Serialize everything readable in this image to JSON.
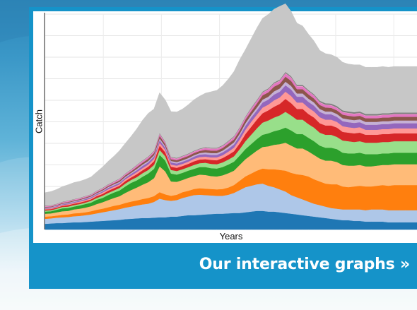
{
  "link": {
    "label": "Our interactive graphs »"
  },
  "colors": {
    "card": "#1593c9"
  },
  "chart_data": {
    "type": "area",
    "stacked": true,
    "xlabel": "Years",
    "ylabel": "Catch",
    "title": "",
    "grid": true,
    "x": [
      0,
      1,
      2,
      3,
      4,
      5,
      6,
      7,
      8,
      9,
      10,
      11,
      12,
      13,
      14,
      15,
      16,
      17,
      18,
      19,
      20,
      21,
      22,
      23,
      24,
      25,
      26,
      27,
      28,
      29,
      30,
      31,
      32,
      33,
      34,
      35,
      36,
      37,
      38,
      39,
      40,
      41,
      42,
      43,
      44,
      45,
      46,
      47,
      48,
      49,
      50,
      51,
      52,
      53,
      54,
      55,
      56,
      57,
      58,
      59,
      60,
      61,
      62,
      63,
      64,
      65
    ],
    "ylim": [
      0,
      30
    ],
    "series": [
      {
        "color": "#1f77b4",
        "values": [
          0.8,
          0.85,
          0.9,
          0.9,
          0.95,
          1.0,
          1.0,
          1.05,
          1.1,
          1.15,
          1.2,
          1.25,
          1.3,
          1.35,
          1.45,
          1.5,
          1.55,
          1.6,
          1.6,
          1.65,
          1.7,
          1.7,
          1.8,
          1.8,
          1.9,
          2.0,
          2.0,
          2.05,
          2.1,
          2.15,
          2.2,
          2.2,
          2.25,
          2.3,
          2.3,
          2.4,
          2.5,
          2.6,
          2.6,
          2.5,
          2.5,
          2.4,
          2.3,
          2.2,
          2.1,
          2.0,
          1.9,
          1.8,
          1.7,
          1.6,
          1.5,
          1.4,
          1.3,
          1.3,
          1.2,
          1.2,
          1.1,
          1.1,
          1.1,
          1.1,
          1.0,
          1.0,
          1.0,
          1.0,
          1.0,
          1.0
        ]
      },
      {
        "color": "#aec7e8",
        "values": [
          0.7,
          0.7,
          0.75,
          0.8,
          0.8,
          0.85,
          0.9,
          0.95,
          1.0,
          1.1,
          1.2,
          1.3,
          1.4,
          1.5,
          1.6,
          1.7,
          1.8,
          1.9,
          2.0,
          2.2,
          2.6,
          2.4,
          2.2,
          2.3,
          2.5,
          2.6,
          2.8,
          2.8,
          2.7,
          2.6,
          2.5,
          2.5,
          2.6,
          2.8,
          3.2,
          3.5,
          3.6,
          3.7,
          3.8,
          3.6,
          3.4,
          3.2,
          3.0,
          2.6,
          2.4,
          2.2,
          2.0,
          1.8,
          1.7,
          1.6,
          1.5,
          1.5,
          1.5,
          1.5,
          1.6,
          1.6,
          1.6,
          1.7,
          1.7,
          1.7,
          1.7,
          1.7,
          1.7,
          1.7,
          1.7,
          1.7
        ]
      },
      {
        "color": "#ff7f0e",
        "values": [
          0.3,
          0.3,
          0.3,
          0.35,
          0.35,
          0.4,
          0.4,
          0.4,
          0.45,
          0.5,
          0.5,
          0.55,
          0.6,
          0.6,
          0.65,
          0.7,
          0.7,
          0.75,
          0.8,
          0.8,
          0.9,
          0.8,
          0.7,
          0.75,
          0.8,
          0.8,
          0.85,
          0.9,
          0.9,
          0.9,
          0.9,
          0.95,
          1.0,
          1.1,
          1.3,
          1.5,
          1.7,
          1.9,
          2.1,
          2.3,
          2.5,
          2.7,
          2.9,
          3.1,
          3.2,
          3.4,
          3.5,
          3.4,
          3.3,
          3.2,
          3.3,
          3.4,
          3.2,
          3.1,
          3.2,
          3.3,
          3.3,
          3.2,
          3.3,
          3.4,
          3.4,
          3.5,
          3.5,
          3.5,
          3.5,
          3.5
        ]
      },
      {
        "color": "#ffbb78",
        "values": [
          0.4,
          0.4,
          0.45,
          0.5,
          0.5,
          0.55,
          0.6,
          0.65,
          0.7,
          0.8,
          0.9,
          1.0,
          1.1,
          1.2,
          1.4,
          1.6,
          1.8,
          2.0,
          2.2,
          2.5,
          3.6,
          3.2,
          2.0,
          1.8,
          1.7,
          1.8,
          1.8,
          1.9,
          1.9,
          1.8,
          1.8,
          1.9,
          2.0,
          2.0,
          2.2,
          2.4,
          2.6,
          2.8,
          3.0,
          3.2,
          3.4,
          3.6,
          3.9,
          3.8,
          3.6,
          3.7,
          3.5,
          3.4,
          3.2,
          3.2,
          3.3,
          3.1,
          3.0,
          3.0,
          2.9,
          2.9,
          2.8,
          2.8,
          2.8,
          2.8,
          2.9,
          2.9,
          2.9,
          2.9,
          2.9,
          2.9
        ]
      },
      {
        "color": "#2ca02c",
        "values": [
          0.3,
          0.3,
          0.35,
          0.4,
          0.4,
          0.4,
          0.45,
          0.5,
          0.5,
          0.6,
          0.6,
          0.7,
          0.75,
          0.8,
          0.9,
          1.0,
          1.0,
          1.1,
          1.2,
          1.3,
          1.6,
          1.5,
          1.1,
          1.0,
          1.0,
          1.0,
          1.0,
          1.05,
          1.1,
          1.1,
          1.1,
          1.15,
          1.2,
          1.25,
          1.3,
          1.4,
          1.5,
          1.6,
          1.7,
          1.8,
          1.9,
          2.0,
          2.1,
          2.1,
          2.0,
          2.0,
          1.9,
          1.9,
          1.8,
          1.8,
          1.8,
          1.8,
          1.7,
          1.7,
          1.7,
          1.7,
          1.7,
          1.7,
          1.6,
          1.6,
          1.6,
          1.6,
          1.6,
          1.6,
          1.6,
          1.6
        ]
      },
      {
        "color": "#98df8a",
        "values": [
          0.15,
          0.15,
          0.15,
          0.2,
          0.2,
          0.2,
          0.2,
          0.2,
          0.25,
          0.25,
          0.3,
          0.3,
          0.3,
          0.35,
          0.4,
          0.4,
          0.45,
          0.5,
          0.5,
          0.55,
          0.7,
          0.6,
          0.5,
          0.5,
          0.5,
          0.5,
          0.55,
          0.55,
          0.6,
          0.6,
          0.6,
          0.65,
          0.7,
          0.75,
          0.9,
          1.1,
          1.3,
          1.5,
          1.7,
          1.8,
          1.9,
          2.0,
          2.2,
          2.1,
          2.0,
          2.0,
          1.9,
          1.9,
          1.8,
          1.8,
          1.8,
          1.7,
          1.7,
          1.7,
          1.6,
          1.6,
          1.6,
          1.6,
          1.6,
          1.6,
          1.6,
          1.6,
          1.6,
          1.6,
          1.6,
          1.6
        ]
      },
      {
        "color": "#d62728",
        "values": [
          0.15,
          0.15,
          0.15,
          0.15,
          0.2,
          0.2,
          0.2,
          0.2,
          0.2,
          0.25,
          0.25,
          0.3,
          0.3,
          0.3,
          0.35,
          0.35,
          0.4,
          0.4,
          0.45,
          0.5,
          0.6,
          0.55,
          0.45,
          0.45,
          0.45,
          0.45,
          0.5,
          0.5,
          0.5,
          0.55,
          0.55,
          0.6,
          0.65,
          0.7,
          0.8,
          1.0,
          1.1,
          1.2,
          1.3,
          1.4,
          1.5,
          1.6,
          1.8,
          1.7,
          1.5,
          1.5,
          1.4,
          1.4,
          1.3,
          1.3,
          1.3,
          1.3,
          1.2,
          1.2,
          1.2,
          1.2,
          1.1,
          1.1,
          1.1,
          1.1,
          1.1,
          1.1,
          1.1,
          1.1,
          1.1,
          1.1
        ]
      },
      {
        "color": "#ff9896",
        "values": [
          0.1,
          0.1,
          0.1,
          0.12,
          0.12,
          0.12,
          0.15,
          0.15,
          0.15,
          0.15,
          0.2,
          0.2,
          0.2,
          0.2,
          0.25,
          0.25,
          0.3,
          0.3,
          0.3,
          0.35,
          0.4,
          0.35,
          0.3,
          0.3,
          0.3,
          0.3,
          0.35,
          0.35,
          0.35,
          0.35,
          0.4,
          0.4,
          0.45,
          0.5,
          0.55,
          0.6,
          0.7,
          0.7,
          0.8,
          0.8,
          0.9,
          0.9,
          1.0,
          1.0,
          0.9,
          0.9,
          0.9,
          0.85,
          0.85,
          0.8,
          0.8,
          0.8,
          0.8,
          0.75,
          0.75,
          0.75,
          0.7,
          0.7,
          0.7,
          0.7,
          0.7,
          0.7,
          0.7,
          0.7,
          0.7,
          0.7
        ]
      },
      {
        "color": "#9467bd",
        "values": [
          0.1,
          0.1,
          0.1,
          0.1,
          0.12,
          0.12,
          0.12,
          0.15,
          0.15,
          0.15,
          0.15,
          0.2,
          0.2,
          0.2,
          0.2,
          0.25,
          0.25,
          0.3,
          0.3,
          0.3,
          0.35,
          0.3,
          0.3,
          0.3,
          0.3,
          0.3,
          0.3,
          0.35,
          0.35,
          0.35,
          0.35,
          0.4,
          0.4,
          0.45,
          0.5,
          0.55,
          0.6,
          0.6,
          0.7,
          0.7,
          0.8,
          0.8,
          0.9,
          0.9,
          0.8,
          0.8,
          0.8,
          0.8,
          0.75,
          0.75,
          0.75,
          0.7,
          0.7,
          0.7,
          0.7,
          0.7,
          0.7,
          0.7,
          0.7,
          0.7,
          0.7,
          0.7,
          0.7,
          0.7,
          0.7,
          0.7
        ]
      },
      {
        "color": "#c5b0d5",
        "values": [
          0.08,
          0.08,
          0.08,
          0.08,
          0.1,
          0.1,
          0.1,
          0.1,
          0.1,
          0.12,
          0.12,
          0.12,
          0.15,
          0.15,
          0.15,
          0.15,
          0.2,
          0.2,
          0.2,
          0.2,
          0.25,
          0.2,
          0.2,
          0.2,
          0.2,
          0.2,
          0.2,
          0.2,
          0.25,
          0.25,
          0.25,
          0.25,
          0.3,
          0.3,
          0.3,
          0.35,
          0.35,
          0.4,
          0.4,
          0.4,
          0.45,
          0.45,
          0.5,
          0.5,
          0.45,
          0.45,
          0.45,
          0.45,
          0.4,
          0.4,
          0.4,
          0.4,
          0.4,
          0.4,
          0.4,
          0.4,
          0.4,
          0.4,
          0.4,
          0.4,
          0.4,
          0.4,
          0.4,
          0.4,
          0.4,
          0.4
        ]
      },
      {
        "color": "#8c564b",
        "values": [
          0.08,
          0.08,
          0.08,
          0.1,
          0.1,
          0.1,
          0.1,
          0.12,
          0.12,
          0.12,
          0.15,
          0.15,
          0.15,
          0.2,
          0.2,
          0.2,
          0.25,
          0.25,
          0.3,
          0.3,
          0.35,
          0.3,
          0.25,
          0.25,
          0.3,
          0.3,
          0.3,
          0.3,
          0.35,
          0.35,
          0.35,
          0.35,
          0.4,
          0.4,
          0.45,
          0.5,
          0.5,
          0.55,
          0.6,
          0.6,
          0.65,
          0.65,
          0.7,
          0.7,
          0.6,
          0.6,
          0.6,
          0.55,
          0.55,
          0.55,
          0.5,
          0.5,
          0.5,
          0.5,
          0.5,
          0.5,
          0.5,
          0.5,
          0.5,
          0.5,
          0.5,
          0.5,
          0.5,
          0.5,
          0.5,
          0.5
        ]
      },
      {
        "color": "#e377c2",
        "values": [
          0.08,
          0.08,
          0.08,
          0.08,
          0.1,
          0.1,
          0.1,
          0.1,
          0.1,
          0.12,
          0.12,
          0.12,
          0.15,
          0.15,
          0.15,
          0.15,
          0.2,
          0.2,
          0.2,
          0.2,
          0.25,
          0.2,
          0.2,
          0.2,
          0.2,
          0.2,
          0.2,
          0.2,
          0.25,
          0.25,
          0.25,
          0.25,
          0.25,
          0.3,
          0.3,
          0.3,
          0.35,
          0.35,
          0.35,
          0.4,
          0.4,
          0.4,
          0.45,
          0.45,
          0.4,
          0.4,
          0.4,
          0.4,
          0.35,
          0.35,
          0.35,
          0.35,
          0.35,
          0.35,
          0.35,
          0.35,
          0.35,
          0.35,
          0.35,
          0.35,
          0.35,
          0.35,
          0.35,
          0.35,
          0.35,
          0.35
        ]
      },
      {
        "color": "#f7b6d2",
        "values": [
          0.05,
          0.05,
          0.05,
          0.05,
          0.05,
          0.05,
          0.05,
          0.05,
          0.05,
          0.05,
          0.05,
          0.05,
          0.05,
          0.05,
          0.05,
          0.05,
          0.05,
          0.05,
          0.05,
          0.05,
          0.05,
          0.05,
          0.05,
          0.05,
          0.05,
          0.05,
          0.05,
          0.05,
          0.05,
          0.05,
          0.05,
          0.05,
          0.05,
          0.05,
          0.05,
          0.05,
          0.05,
          0.05,
          0.05,
          0.05,
          0.05,
          0.05,
          0.05,
          0.05,
          0.05,
          0.05,
          0.05,
          0.05,
          0.05,
          0.05,
          0.05,
          0.05,
          0.05,
          0.05,
          0.05,
          0.05,
          0.05,
          0.05,
          0.05,
          0.05,
          0.05,
          0.05,
          0.05,
          0.05,
          0.05,
          0.05
        ]
      },
      {
        "color": "#7f7f7f",
        "values": [
          0.05,
          0.05,
          0.05,
          0.05,
          0.05,
          0.05,
          0.05,
          0.05,
          0.05,
          0.05,
          0.06,
          0.06,
          0.06,
          0.06,
          0.06,
          0.07,
          0.07,
          0.07,
          0.08,
          0.08,
          0.1,
          0.09,
          0.08,
          0.08,
          0.08,
          0.08,
          0.08,
          0.08,
          0.09,
          0.09,
          0.09,
          0.09,
          0.1,
          0.1,
          0.1,
          0.1,
          0.12,
          0.12,
          0.12,
          0.12,
          0.14,
          0.14,
          0.15,
          0.15,
          0.15,
          0.15,
          0.15,
          0.15,
          0.2,
          0.2,
          0.2,
          0.2,
          0.2,
          0.2,
          0.2,
          0.2,
          0.2,
          0.2,
          0.2,
          0.2,
          0.2,
          0.2,
          0.2,
          0.2,
          0.2,
          0.2
        ]
      },
      {
        "color": "#c7c7c7",
        "values": [
          1.8,
          1.9,
          2.0,
          2.1,
          2.2,
          2.3,
          2.3,
          2.3,
          2.4,
          2.6,
          2.9,
          3.2,
          3.5,
          3.9,
          4.2,
          4.6,
          5.0,
          5.6,
          6.0,
          5.8,
          5.6,
          5.8,
          6.3,
          6.4,
          6.5,
          6.8,
          7.1,
          7.3,
          7.5,
          7.8,
          8.0,
          8.3,
          8.6,
          9.0,
          9.4,
          9.3,
          9.6,
          10.0,
          10.2,
          10.3,
          10.2,
          10.2,
          9.5,
          9.0,
          8.6,
          8.2,
          7.8,
          7.4,
          7.0,
          6.9,
          6.8,
          6.8,
          6.7,
          6.6,
          6.6,
          6.5,
          6.5,
          6.5,
          6.5,
          6.5,
          6.4,
          6.4,
          6.4,
          6.4,
          6.4,
          6.4
        ]
      }
    ]
  }
}
